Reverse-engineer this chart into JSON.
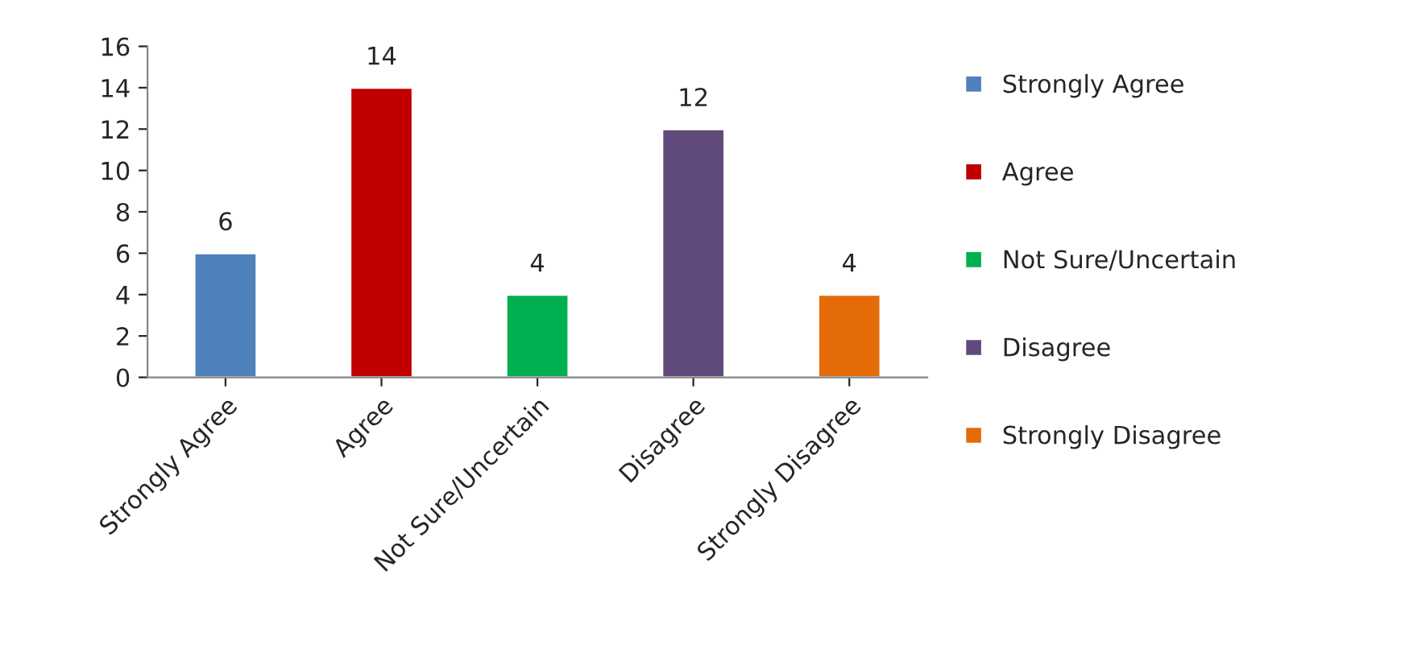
{
  "chart_data": {
    "type": "bar",
    "categories": [
      "Strongly Agree",
      "Agree",
      "Not Sure/Uncertain",
      "Disagree",
      "Strongly Disagree"
    ],
    "series": [
      {
        "name": "Strongly Agree",
        "color": "#4f81bd",
        "values": [
          6,
          null,
          null,
          null,
          null
        ]
      },
      {
        "name": "Agree",
        "color": "#c00000",
        "values": [
          null,
          14,
          null,
          null,
          null
        ]
      },
      {
        "name": "Not Sure/Uncertain",
        "color": "#00b050",
        "values": [
          null,
          null,
          4,
          null,
          null
        ]
      },
      {
        "name": "Disagree",
        "color": "#604a7b",
        "values": [
          null,
          null,
          null,
          12,
          null
        ]
      },
      {
        "name": "Strongly Disagree",
        "color": "#e36c09",
        "values": [
          null,
          null,
          null,
          null,
          4
        ]
      }
    ],
    "ylim": [
      0,
      16
    ],
    "yticks": [
      0,
      2,
      4,
      6,
      8,
      10,
      12,
      14,
      16
    ],
    "data_labels": true,
    "grid": false,
    "legend": "right"
  }
}
